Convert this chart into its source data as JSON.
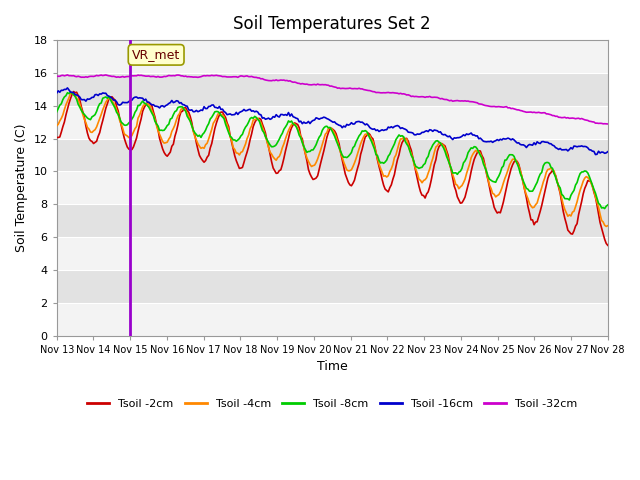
{
  "title": "Soil Temperatures Set 2",
  "xlabel": "Time",
  "ylabel": "Soil Temperature (C)",
  "ylim": [
    0,
    18
  ],
  "yticks": [
    0,
    2,
    4,
    6,
    8,
    10,
    12,
    14,
    16,
    18
  ],
  "x_labels": [
    "Nov 13",
    "Nov 14",
    "Nov 15",
    "Nov 16",
    "Nov 17",
    "Nov 18",
    "Nov 19",
    "Nov 20",
    "Nov 21",
    "Nov 22",
    "Nov 23",
    "Nov 24",
    "Nov 25",
    "Nov 26",
    "Nov 27",
    "Nov 28"
  ],
  "vline_x": 2.0,
  "vline_label": "VR_met",
  "bg_color": "#e8e8e8",
  "plot_bg_color": "#e8e8e8",
  "series": {
    "Tsoil -2cm": {
      "color": "#cc0000"
    },
    "Tsoil -4cm": {
      "color": "#ff8800"
    },
    "Tsoil -8cm": {
      "color": "#00cc00"
    },
    "Tsoil -16cm": {
      "color": "#0000cc"
    },
    "Tsoil -32cm": {
      "color": "#cc00cc"
    }
  },
  "legend_colors": [
    "#cc0000",
    "#ff8800",
    "#00cc00",
    "#0000cc",
    "#cc00cc"
  ],
  "legend_labels": [
    "Tsoil -2cm",
    "Tsoil -4cm",
    "Tsoil -8cm",
    "Tsoil -16cm",
    "Tsoil -32cm"
  ]
}
